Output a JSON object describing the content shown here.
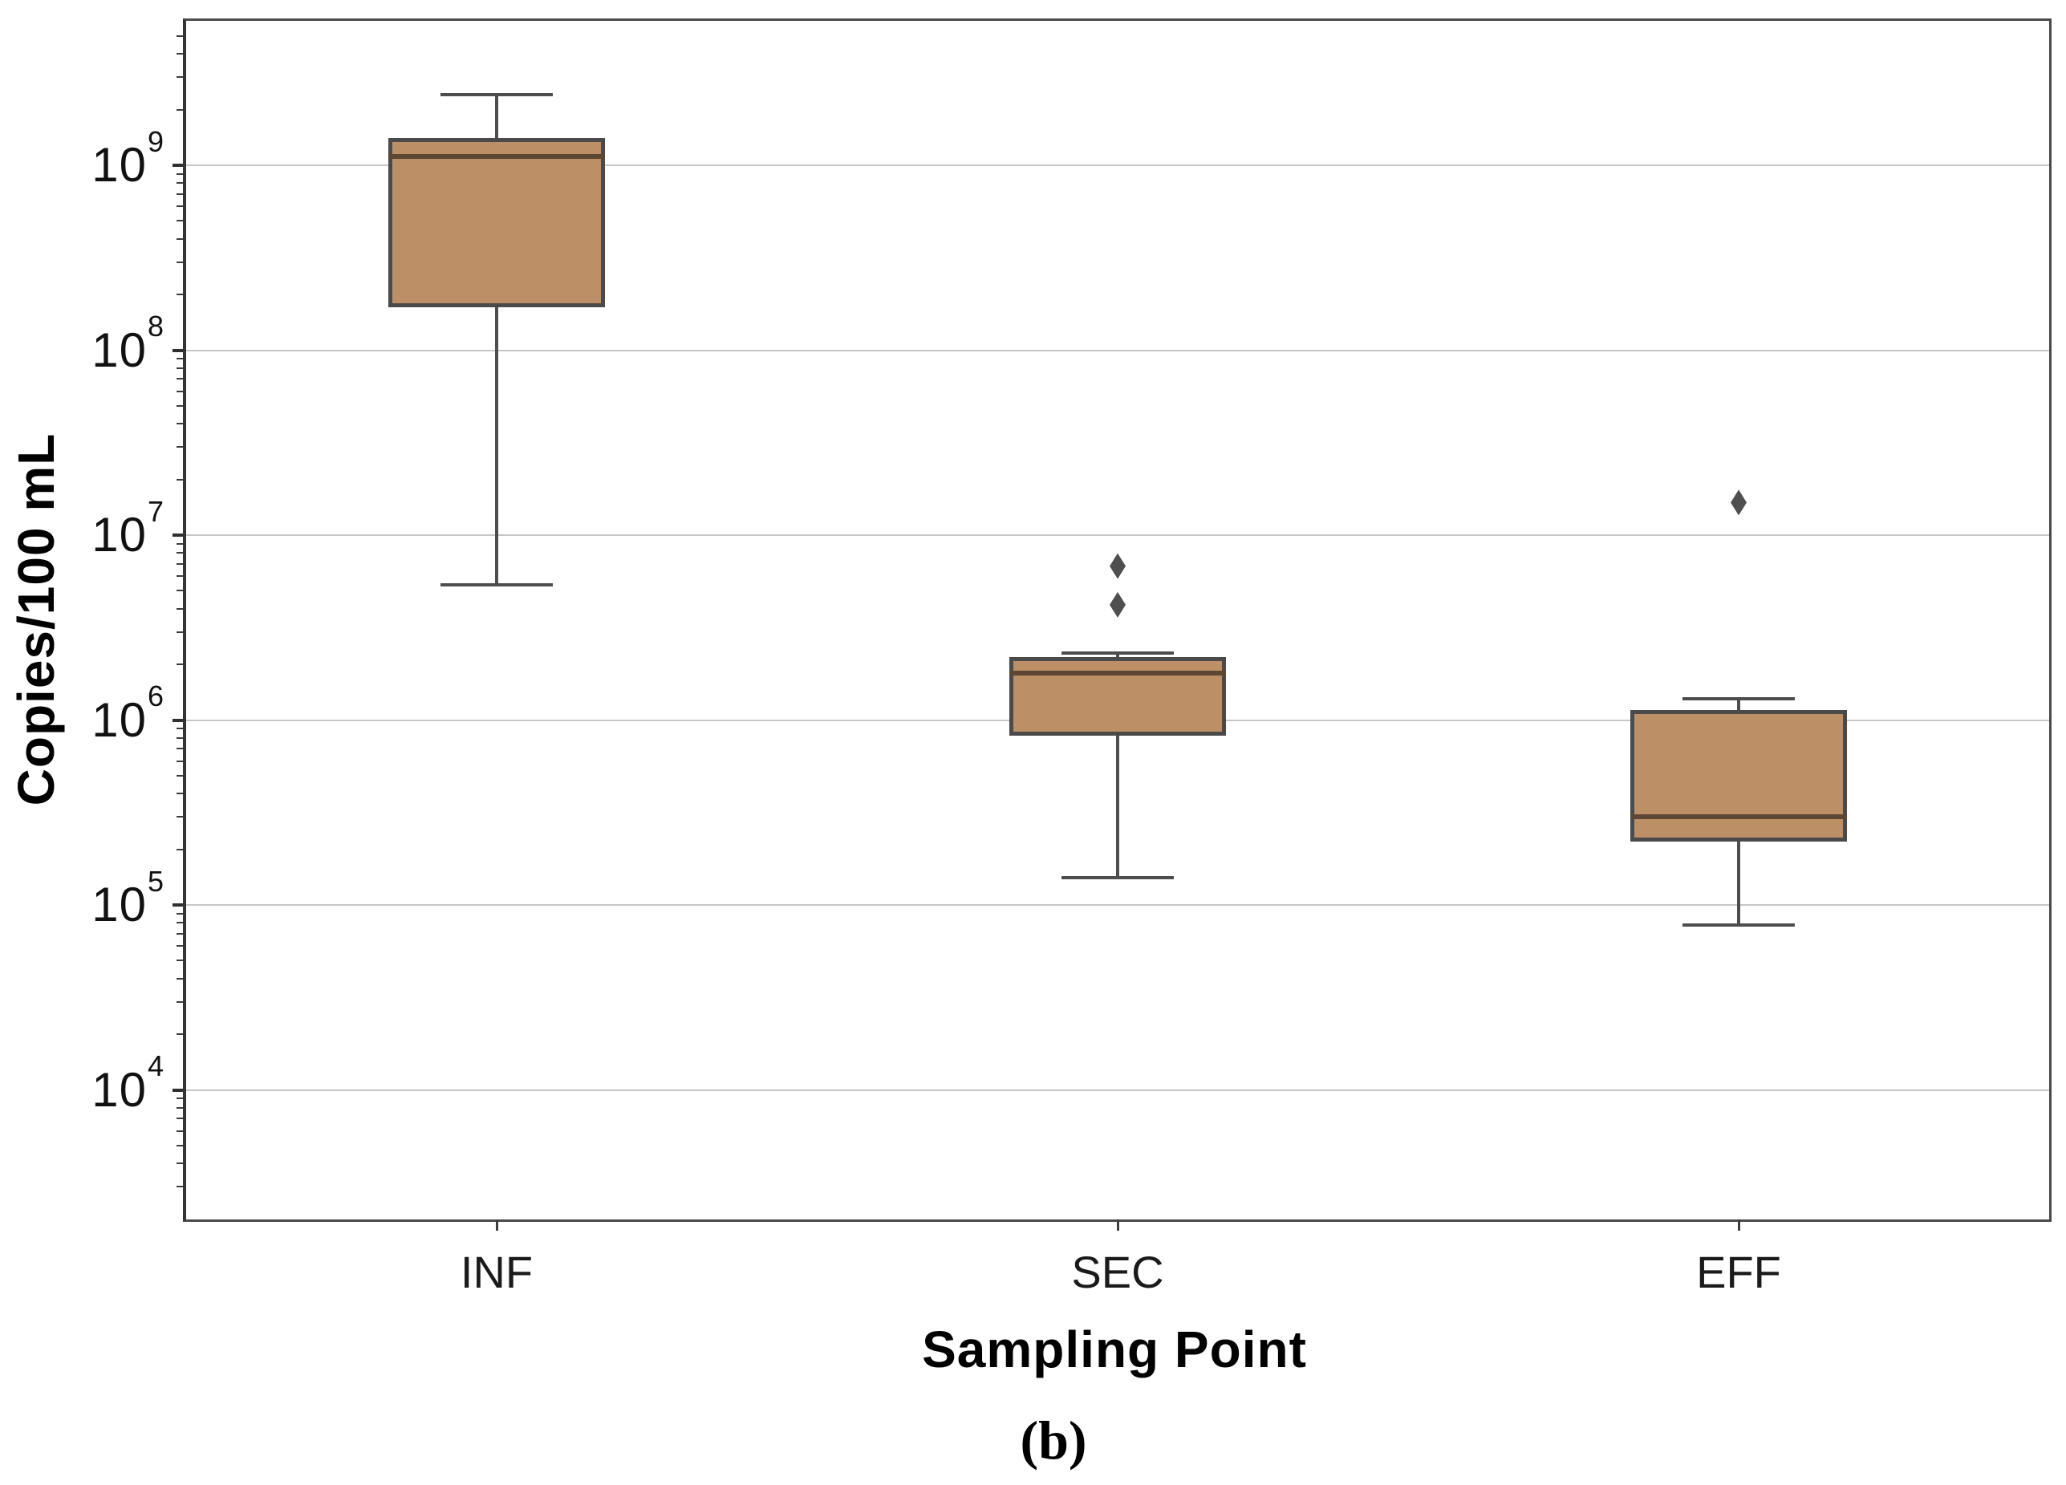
{
  "figure": {
    "caption": "(b)"
  },
  "chart_data": {
    "type": "boxplot",
    "title": "",
    "xlabel": "Sampling Point",
    "ylabel": "Copies/100 mL",
    "categories": [
      "INF",
      "SEC",
      "EFF"
    ],
    "y_scale": "log10",
    "y_tick_base": "10",
    "y_tick_exponents": [
      9,
      8,
      7,
      6,
      5,
      4
    ],
    "ylim": [
      2000,
      6000000000
    ],
    "grid": "horizontal-major-only",
    "legend": "none",
    "series": [
      {
        "label": "INF",
        "whisker_low": 5400000,
        "q1": 170000000,
        "median": 1120000000,
        "q3": 1400000000,
        "whisker_high": 2400000000,
        "outliers": []
      },
      {
        "label": "SEC",
        "whisker_low": 140000,
        "q1": 820000,
        "median": 1800000,
        "q3": 2200000,
        "whisker_high": 2300000,
        "outliers": [
          6800000,
          4200000
        ]
      },
      {
        "label": "EFF",
        "whisker_low": 78000,
        "q1": 220000,
        "median": 300000,
        "q3": 1130000,
        "whisker_high": 1300000,
        "outliers": [
          15000000
        ]
      }
    ],
    "colors": {
      "box_fill": "#bd8f66",
      "box_edge": "#4a4a4a",
      "median": "#5b4733",
      "whisker": "#4d4d4d",
      "outlier": "#4f4f4f",
      "gridline": "#c6c6c6",
      "spine": "#4a4a4a",
      "text": "#111111"
    }
  }
}
